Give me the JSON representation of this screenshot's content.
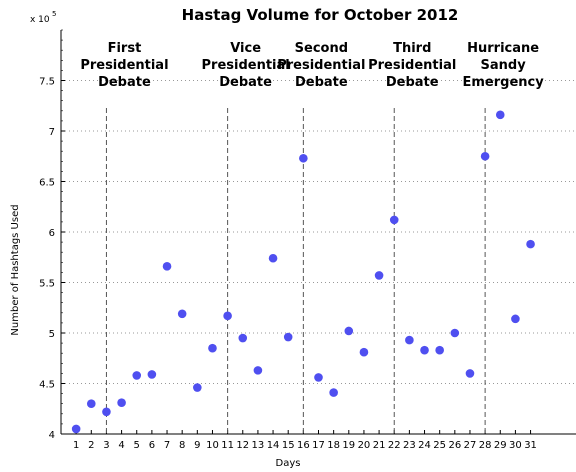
{
  "chart_data": {
    "type": "scatter",
    "title": "Hastag Volume for October 2012",
    "xlabel": "Days",
    "ylabel": "Number of Hashtags Used",
    "y_multiplier_label": "x 10",
    "y_multiplier_exponent": "5",
    "xlim": [
      0,
      34
    ],
    "ylim": [
      4.0,
      8.0
    ],
    "xticks": [
      1,
      2,
      3,
      4,
      5,
      6,
      7,
      8,
      9,
      10,
      11,
      12,
      13,
      14,
      15,
      16,
      17,
      18,
      19,
      20,
      21,
      22,
      23,
      24,
      25,
      26,
      27,
      28,
      29,
      30,
      31
    ],
    "yticks": [
      4,
      4.5,
      5,
      5.5,
      6,
      6.5,
      7,
      7.5
    ],
    "ytick_labels": [
      "4",
      "4.5",
      "5",
      "5.5",
      "6",
      "6.5",
      "7",
      "7.5"
    ],
    "grid": true,
    "marker_color": "#4f4ff0",
    "series": [
      {
        "x": [
          1,
          2,
          3,
          4,
          5,
          6,
          7,
          8,
          9,
          10,
          11,
          12,
          13,
          14,
          15,
          16,
          17,
          18,
          19,
          20,
          21,
          22,
          23,
          24,
          25,
          26,
          27,
          28,
          29,
          30,
          31
        ],
        "y": [
          4.05,
          4.3,
          4.22,
          4.31,
          4.58,
          4.59,
          5.66,
          5.19,
          4.46,
          4.85,
          5.17,
          4.95,
          4.63,
          5.74,
          4.96,
          6.73,
          4.56,
          4.41,
          5.02,
          4.81,
          5.57,
          6.12,
          4.93,
          4.83,
          4.83,
          5.0,
          4.6,
          6.75,
          7.16,
          5.14,
          5.88
        ]
      }
    ],
    "annotations": [
      {
        "x": 3,
        "lines": [
          "First",
          "Presidential",
          "Debate"
        ]
      },
      {
        "x": 11,
        "lines": [
          "Vice",
          "Presidential",
          "Debate"
        ]
      },
      {
        "x": 16,
        "lines": [
          "Second",
          "Presidential",
          "Debate"
        ]
      },
      {
        "x": 22,
        "lines": [
          "Third",
          "Presidential",
          "Debate"
        ]
      },
      {
        "x": 28,
        "lines": [
          "Hurricane",
          "Sandy",
          "Emergency"
        ]
      }
    ]
  }
}
